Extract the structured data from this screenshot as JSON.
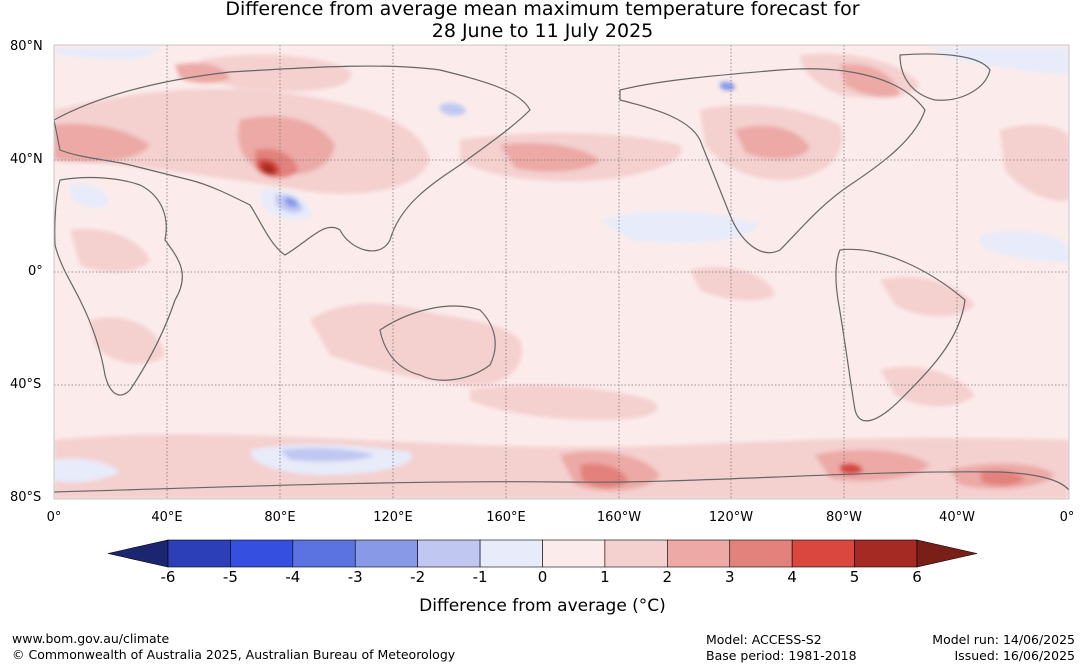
{
  "title": {
    "line1": "Difference from average mean maximum temperature forecast for",
    "line2": "28 June to 11 July 2025"
  },
  "lat_labels": [
    "80°N",
    "40°N",
    "0°",
    "40°S",
    "80°S"
  ],
  "lon_labels": [
    "0°",
    "40°E",
    "80°E",
    "120°E",
    "160°E",
    "160°W",
    "120°W",
    "80°W",
    "40°W",
    "0°"
  ],
  "colorbar": {
    "ticks": [
      "-6",
      "-5",
      "-4",
      "-3",
      "-2",
      "-1",
      "0",
      "1",
      "2",
      "3",
      "4",
      "5",
      "6"
    ],
    "colors": [
      "#26307f",
      "#2c3fb8",
      "#3550e0",
      "#5a73e0",
      "#8899e8",
      "#c0c8f2",
      "#e8ebfa",
      "#fbeceb",
      "#f4d0cf",
      "#eca9a6",
      "#e3817c",
      "#d9473f",
      "#a52a24"
    ],
    "under_color": "#1c2670",
    "over_color": "#7a1e18",
    "label": "Difference from average (°C)"
  },
  "footer": {
    "left_line1": "www.bom.gov.au/climate",
    "left_line2": "© Commonwealth of Australia 2025, Australian Bureau of Meteorology",
    "model": "Model: ACCESS-S2",
    "base_period": "Base period: 1981-2018",
    "model_run": "Model run: 14/06/2025",
    "issued": "Issued: 16/06/2025"
  }
}
